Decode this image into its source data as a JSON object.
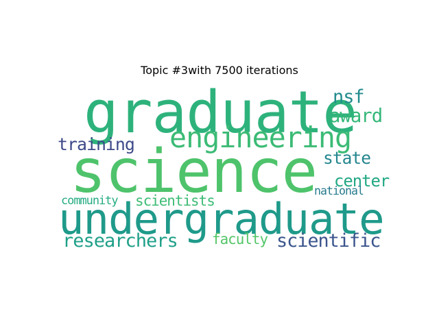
{
  "title": "Topic #3with 7500 iterations",
  "words": [
    {
      "text": "graduate",
      "color": "#2eb27c"
    },
    {
      "text": "science",
      "color": "#4ec36b"
    },
    {
      "text": "undergraduate",
      "color": "#1f9a8a"
    },
    {
      "text": "engineering",
      "color": "#3bbb75"
    },
    {
      "text": "nsf",
      "color": "#228c8d"
    },
    {
      "text": "award",
      "color": "#35b779"
    },
    {
      "text": "training",
      "color": "#3e4a89"
    },
    {
      "text": "state",
      "color": "#24868e"
    },
    {
      "text": "center",
      "color": "#22a884"
    },
    {
      "text": "national",
      "color": "#287c8e"
    },
    {
      "text": "community",
      "color": "#25ab82"
    },
    {
      "text": "scientists",
      "color": "#3dbc74"
    },
    {
      "text": "researchers",
      "color": "#1fa088"
    },
    {
      "text": "faculty",
      "color": "#54c568"
    },
    {
      "text": "scientific",
      "color": "#3a548c"
    }
  ]
}
